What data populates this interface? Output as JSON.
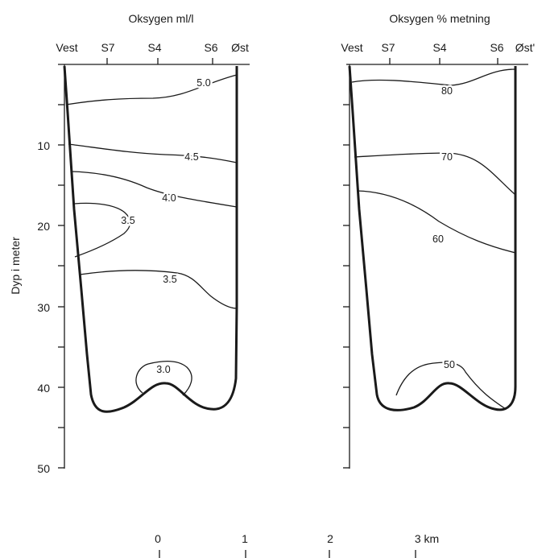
{
  "y_axis": {
    "label": "Dyp i meter",
    "ticks": [
      "10",
      "20",
      "30",
      "40",
      "50"
    ]
  },
  "stations": [
    "Vest",
    "S7",
    "S4",
    "S6",
    "Øst"
  ],
  "panels": [
    {
      "title": "Oksygen ml/l",
      "station_east_label": "Øst",
      "contour_labels": [
        "5.0",
        "4.5",
        "4.0",
        "3.5",
        "3.5",
        "3.0"
      ]
    },
    {
      "title": "Oksygen % metning",
      "station_east_label": "Øst'",
      "contour_labels": [
        "80",
        "70",
        "60",
        "50"
      ]
    }
  ],
  "scale": {
    "ticks": [
      "0",
      "1",
      "2",
      "3 km"
    ]
  }
}
